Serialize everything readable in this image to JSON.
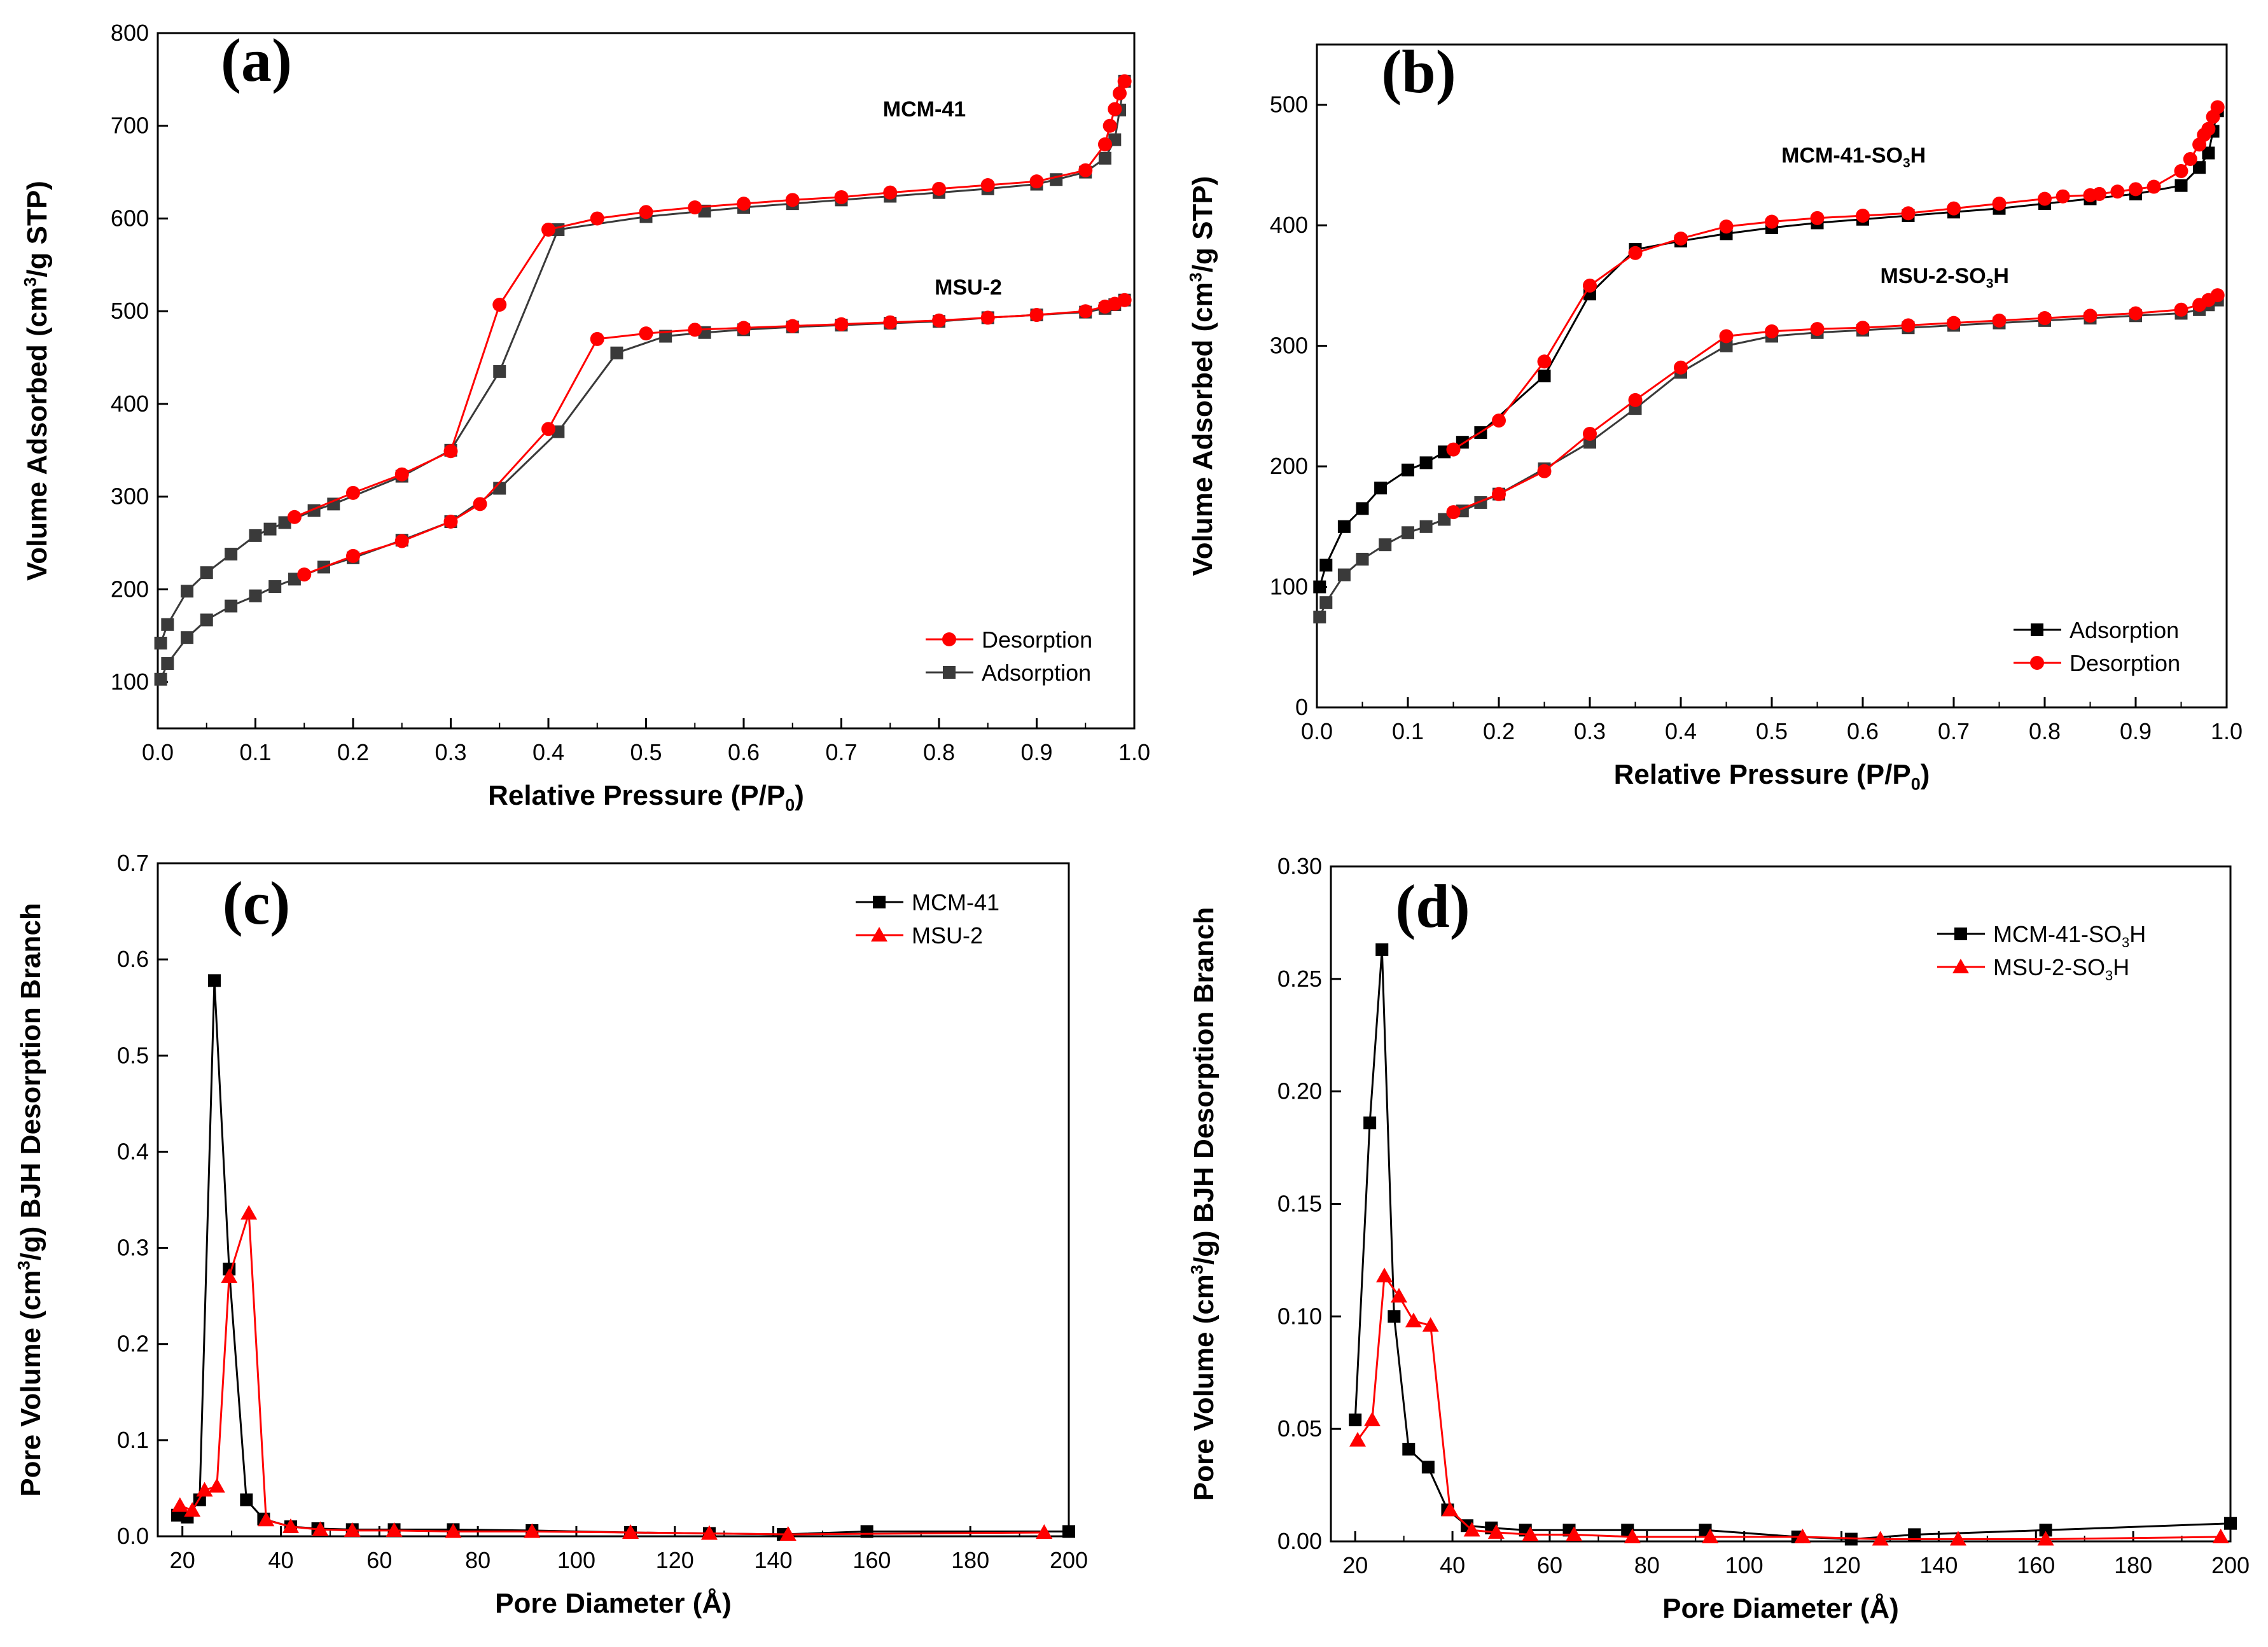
{
  "colors": {
    "black": "#000000",
    "dark": "#3a3a3a",
    "red": "#ff0000"
  },
  "chart_data": [
    {
      "panel": "(a)",
      "type": "line",
      "xlabel": "Relative Pressure (P/P0)",
      "ylabel": "Volume Adsorbed (cm3/g STP)",
      "xlim": [
        0.0,
        1.0
      ],
      "ylim": [
        50,
        800
      ],
      "xticks": [
        "0.0",
        "0.1",
        "0.2",
        "0.3",
        "0.4",
        "0.5",
        "0.6",
        "0.7",
        "0.8",
        "0.9",
        "1.0"
      ],
      "yticks": [
        "100",
        "200",
        "300",
        "400",
        "500",
        "600",
        "700",
        "800"
      ],
      "sample_labels": [
        {
          "text": "MCM-41",
          "x": 0.785,
          "y": 710
        },
        {
          "text": "MSU-2",
          "x": 0.83,
          "y": 518
        }
      ],
      "legend": {
        "position": "bottom-right",
        "items": [
          "Desorption",
          "Adsorption"
        ]
      },
      "series": [
        {
          "name": "Adsorption",
          "color": "#3a3a3a",
          "marker": "square",
          "x": [
            0.003,
            0.01,
            0.03,
            0.05,
            0.075,
            0.1,
            0.115,
            0.13,
            0.16,
            0.18,
            0.25,
            0.3,
            0.35,
            0.41,
            0.5,
            0.56,
            0.6,
            0.65,
            0.7,
            0.75,
            0.8,
            0.85,
            0.9,
            0.92,
            0.95,
            0.97,
            0.98,
            0.985,
            0.99
          ],
          "y": [
            142,
            162,
            198,
            218,
            238,
            258,
            265,
            272,
            285,
            292,
            322,
            350,
            435,
            588,
            602,
            608,
            612,
            616,
            620,
            624,
            628,
            632,
            637,
            642,
            650,
            665,
            685,
            717,
            748
          ]
        },
        {
          "name": "Desorption",
          "color": "#ff0000",
          "marker": "circle",
          "x": [
            0.99,
            0.985,
            0.98,
            0.975,
            0.97,
            0.95,
            0.9,
            0.85,
            0.8,
            0.75,
            0.7,
            0.65,
            0.6,
            0.55,
            0.5,
            0.45,
            0.4,
            0.35,
            0.3,
            0.25,
            0.2,
            0.14
          ],
          "y": [
            748,
            735,
            718,
            700,
            680,
            652,
            640,
            636,
            632,
            628,
            623,
            620,
            616,
            612,
            607,
            600,
            588,
            507,
            349,
            324,
            304,
            278
          ]
        },
        {
          "name": "Adsorption",
          "color": "#3a3a3a",
          "marker": "square",
          "x": [
            0.003,
            0.01,
            0.03,
            0.05,
            0.075,
            0.1,
            0.12,
            0.14,
            0.17,
            0.2,
            0.25,
            0.3,
            0.35,
            0.41,
            0.47,
            0.52,
            0.56,
            0.6,
            0.65,
            0.7,
            0.75,
            0.8,
            0.85,
            0.9,
            0.95,
            0.97,
            0.98,
            0.99
          ],
          "y": [
            103,
            120,
            148,
            167,
            182,
            193,
            203,
            211,
            224,
            234,
            253,
            273,
            309,
            370,
            455,
            473,
            477,
            480,
            483,
            485,
            487,
            489,
            493,
            496,
            499,
            503,
            507,
            512
          ]
        },
        {
          "name": "Desorption",
          "color": "#ff0000",
          "marker": "circle",
          "x": [
            0.99,
            0.98,
            0.97,
            0.95,
            0.9,
            0.85,
            0.8,
            0.75,
            0.7,
            0.65,
            0.6,
            0.55,
            0.5,
            0.45,
            0.4,
            0.33,
            0.3,
            0.25,
            0.2,
            0.15
          ],
          "y": [
            512,
            508,
            505,
            500,
            496,
            493,
            490,
            488,
            486,
            484,
            482,
            480,
            476,
            470,
            373,
            292,
            273,
            252,
            236,
            216
          ]
        }
      ]
    },
    {
      "panel": "(b)",
      "type": "line",
      "xlabel": "Relative Pressure (P/P0)",
      "ylabel": "Volume Adsorbed (cm3/g STP)",
      "xlim": [
        0.0,
        1.0
      ],
      "ylim": [
        0,
        550
      ],
      "xticks": [
        "0.0",
        "0.1",
        "0.2",
        "0.3",
        "0.4",
        "0.5",
        "0.6",
        "0.7",
        "0.8",
        "0.9",
        "1.0"
      ],
      "yticks": [
        "0",
        "100",
        "200",
        "300",
        "400",
        "500"
      ],
      "sample_labels": [
        {
          "text": "MCM-41-SO3H",
          "x": 0.59,
          "y": 452
        },
        {
          "text": "MSU-2-SO3H",
          "x": 0.69,
          "y": 352
        }
      ],
      "legend": {
        "position": "bottom-right",
        "items": [
          "Adsorption",
          "Desorption"
        ]
      },
      "series": [
        {
          "name": "Adsorption",
          "color": "#000000",
          "marker": "square",
          "x": [
            0.003,
            0.01,
            0.03,
            0.05,
            0.07,
            0.1,
            0.12,
            0.14,
            0.16,
            0.18,
            0.25,
            0.3,
            0.35,
            0.4,
            0.45,
            0.5,
            0.55,
            0.6,
            0.65,
            0.7,
            0.75,
            0.8,
            0.85,
            0.9,
            0.95,
            0.97,
            0.98,
            0.985,
            0.99
          ],
          "y": [
            100,
            118,
            150,
            165,
            182,
            197,
            203,
            212,
            220,
            228,
            275,
            343,
            380,
            387,
            393,
            398,
            402,
            405,
            408,
            411,
            414,
            418,
            422,
            426,
            433,
            448,
            460,
            478,
            495
          ]
        },
        {
          "name": "Desorption",
          "color": "#ff0000",
          "marker": "circle",
          "x": [
            0.99,
            0.985,
            0.98,
            0.975,
            0.97,
            0.96,
            0.95,
            0.92,
            0.9,
            0.88,
            0.86,
            0.85,
            0.82,
            0.8,
            0.75,
            0.7,
            0.65,
            0.6,
            0.55,
            0.5,
            0.45,
            0.4,
            0.35,
            0.3,
            0.25,
            0.2,
            0.15
          ],
          "y": [
            498,
            490,
            480,
            475,
            467,
            455,
            445,
            432,
            430,
            428,
            426,
            425,
            424,
            422,
            418,
            414,
            410,
            408,
            406,
            403,
            399,
            389,
            377,
            350,
            287,
            238,
            214
          ]
        },
        {
          "name": "Adsorption",
          "color": "#3a3a3a",
          "marker": "square",
          "x": [
            0.003,
            0.01,
            0.03,
            0.05,
            0.075,
            0.1,
            0.12,
            0.14,
            0.16,
            0.18,
            0.2,
            0.25,
            0.3,
            0.35,
            0.4,
            0.45,
            0.5,
            0.55,
            0.6,
            0.65,
            0.7,
            0.75,
            0.8,
            0.85,
            0.9,
            0.95,
            0.97,
            0.98,
            0.99
          ],
          "y": [
            75,
            87,
            110,
            123,
            135,
            145,
            150,
            156,
            163,
            170,
            177,
            198,
            220,
            248,
            278,
            300,
            308,
            311,
            313,
            315,
            317,
            319,
            321,
            323,
            325,
            327,
            330,
            334,
            338
          ]
        },
        {
          "name": "Desorption",
          "color": "#ff0000",
          "marker": "circle",
          "x": [
            0.99,
            0.98,
            0.97,
            0.95,
            0.9,
            0.85,
            0.8,
            0.75,
            0.7,
            0.65,
            0.6,
            0.55,
            0.5,
            0.45,
            0.4,
            0.35,
            0.3,
            0.25,
            0.2,
            0.15
          ],
          "y": [
            342,
            338,
            334,
            330,
            327,
            325,
            323,
            321,
            319,
            317,
            315,
            314,
            312,
            308,
            282,
            255,
            227,
            196,
            177,
            162
          ]
        }
      ]
    },
    {
      "panel": "(c)",
      "type": "line",
      "xlabel": "Pore Diameter (Å)",
      "ylabel": "Pore Volume (cm3/g) BJH Desorption Branch",
      "xlim": [
        15,
        200
      ],
      "ylim": [
        0,
        0.7
      ],
      "xticks": [
        "20",
        "40",
        "60",
        "80",
        "100",
        "120",
        "140",
        "160",
        "180",
        "200"
      ],
      "yticks": [
        "0.0",
        "0.1",
        "0.2",
        "0.3",
        "0.4",
        "0.5",
        "0.6",
        "0.7"
      ],
      "legend": {
        "position": "top-right",
        "items": [
          "MCM-41",
          "MSU-2"
        ]
      },
      "series": [
        {
          "name": "MCM-41",
          "color": "#000000",
          "marker": "square",
          "x": [
            19,
            21,
            23.5,
            26.5,
            29.5,
            33,
            36.5,
            42,
            47.5,
            54.5,
            63,
            75,
            91,
            111,
            127,
            142,
            159,
            200
          ],
          "y": [
            0.022,
            0.02,
            0.038,
            0.578,
            0.278,
            0.038,
            0.018,
            0.01,
            0.008,
            0.007,
            0.007,
            0.007,
            0.006,
            0.004,
            0.003,
            0.002,
            0.005,
            0.005
          ]
        },
        {
          "name": "MSU-2",
          "color": "#ff0000",
          "marker": "triangle",
          "x": [
            19.5,
            22,
            24.5,
            27,
            29.5,
            33.5,
            37,
            42,
            48,
            54.5,
            63,
            75,
            91,
            111,
            127,
            143,
            195
          ],
          "y": [
            0.032,
            0.027,
            0.048,
            0.052,
            0.27,
            0.336,
            0.017,
            0.01,
            0.007,
            0.006,
            0.006,
            0.005,
            0.005,
            0.004,
            0.003,
            0.002,
            0.004
          ]
        }
      ]
    },
    {
      "panel": "(d)",
      "type": "line",
      "xlabel": "Pore Diameter (Å)",
      "ylabel": "Pore Volume (cm3/g) BJH Desorption Branch",
      "xlim": [
        15,
        200
      ],
      "ylim": [
        0,
        0.3
      ],
      "xticks": [
        "20",
        "40",
        "60",
        "80",
        "100",
        "120",
        "140",
        "160",
        "180",
        "200"
      ],
      "yticks": [
        "0.00",
        "0.05",
        "0.10",
        "0.15",
        "0.20",
        "0.25",
        "0.30"
      ],
      "legend": {
        "position": "top-right",
        "items": [
          "MCM-41-SO3H",
          "MSU-2-SO3H"
        ]
      },
      "series": [
        {
          "name": "MCM-41-SO3H",
          "color": "#000000",
          "marker": "square",
          "x": [
            20,
            23,
            25.5,
            28,
            31,
            35,
            39,
            43,
            48,
            55,
            64,
            76,
            92,
            111,
            122,
            135,
            162,
            200
          ],
          "y": [
            0.054,
            0.186,
            0.263,
            0.1,
            0.041,
            0.033,
            0.014,
            0.007,
            0.006,
            0.005,
            0.005,
            0.005,
            0.005,
            0.002,
            0.001,
            0.003,
            0.005,
            0.008
          ]
        },
        {
          "name": "MSU-2-SO3H",
          "color": "#ff0000",
          "marker": "triangle",
          "x": [
            20.5,
            23.5,
            26,
            29,
            32,
            35.5,
            39.5,
            44,
            49,
            56,
            65,
            77,
            93,
            112,
            128,
            144,
            162,
            198
          ],
          "y": [
            0.045,
            0.054,
            0.118,
            0.109,
            0.098,
            0.096,
            0.014,
            0.005,
            0.004,
            0.003,
            0.003,
            0.002,
            0.002,
            0.002,
            0.001,
            0.001,
            0.001,
            0.002
          ]
        }
      ]
    }
  ]
}
